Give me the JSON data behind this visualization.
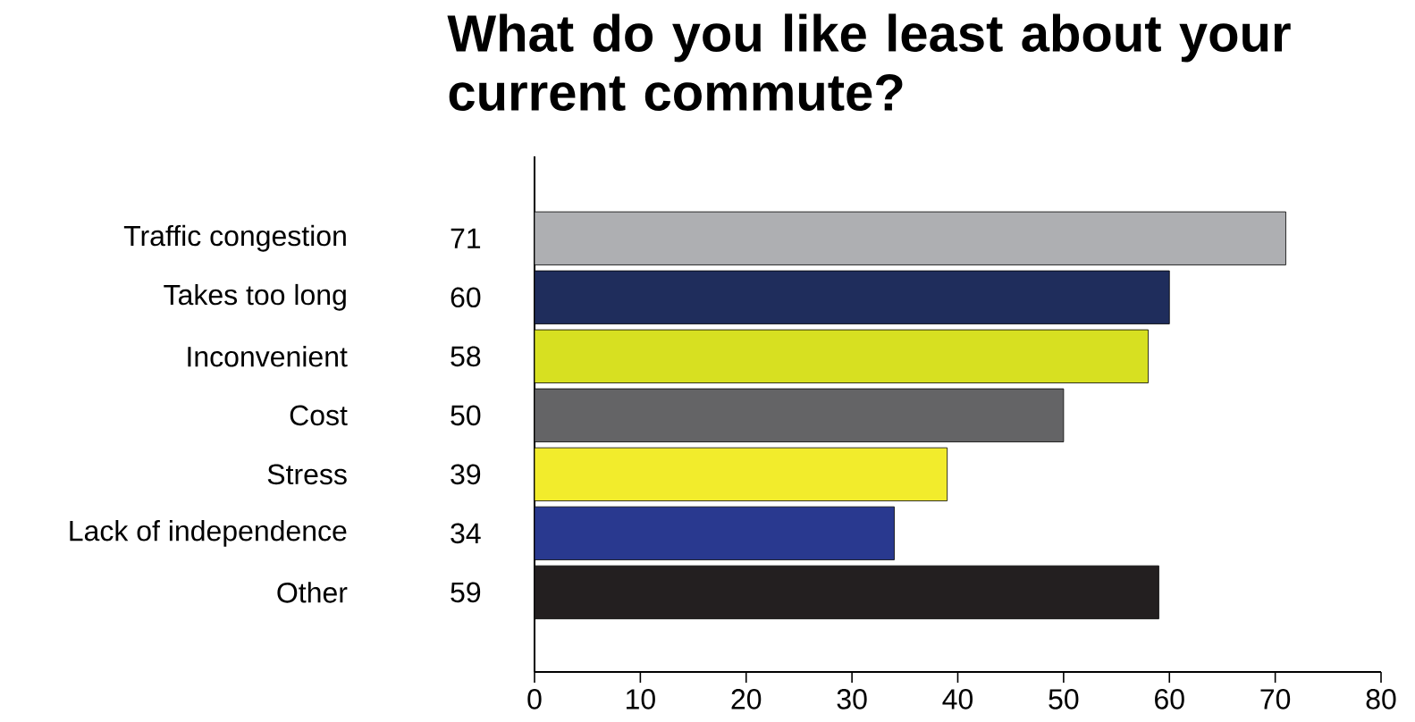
{
  "chart_data": {
    "type": "bar",
    "orientation": "horizontal",
    "title": "What do you like least about your current commute?",
    "categories": [
      "Traffic congestion",
      "Takes too long",
      "Inconvenient",
      "Cost",
      "Stress",
      "Lack of independence",
      "Other"
    ],
    "values": [
      71,
      60,
      58,
      50,
      39,
      34,
      59
    ],
    "colors": [
      "#aeafb2",
      "#1f2d5c",
      "#d7e021",
      "#646466",
      "#f2ec2c",
      "#29398f",
      "#231f20"
    ],
    "data_labels": true,
    "xlim": [
      0,
      80
    ],
    "xticks": [
      0,
      10,
      20,
      30,
      40,
      50,
      60,
      70,
      80
    ]
  }
}
